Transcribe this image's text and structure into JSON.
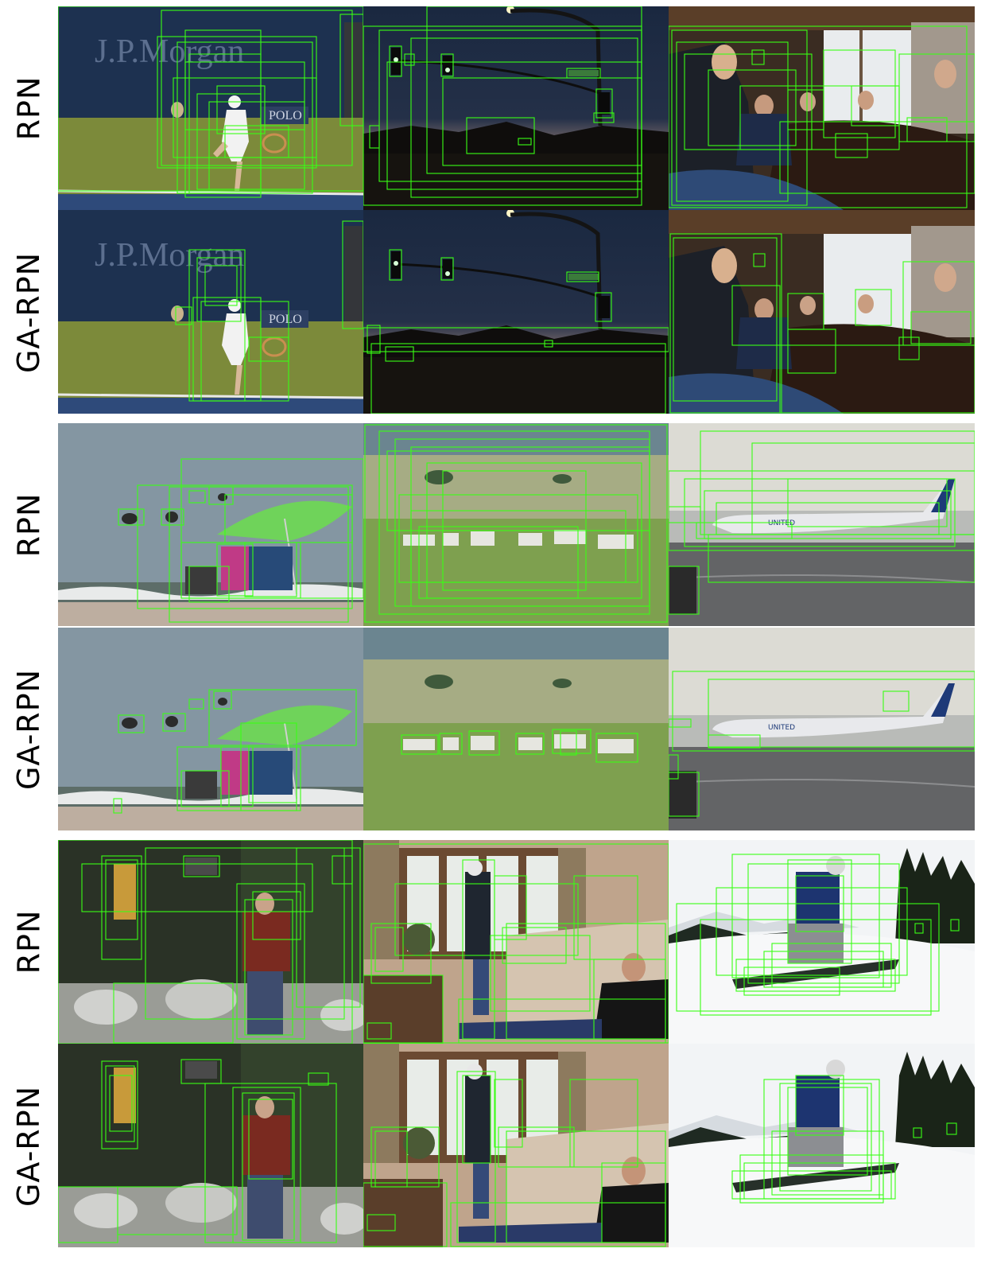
{
  "figure": {
    "rows": [
      {
        "label": "RPN"
      },
      {
        "label": "GA-RPN"
      },
      {
        "label": "RPN"
      },
      {
        "label": "GA-RPN"
      },
      {
        "label": "RPN"
      },
      {
        "label": "GA-RPN"
      }
    ],
    "scenes": [
      {
        "name": "tennis",
        "logo_text": "J.P.Morgan",
        "sign_text": "POLO"
      },
      {
        "name": "traffic-light-dusk"
      },
      {
        "name": "people-dining"
      },
      {
        "name": "beach-umbrella"
      },
      {
        "name": "zebras-savanna"
      },
      {
        "name": "airplane-tarmac",
        "plane_text": "UNITED"
      },
      {
        "name": "hiker-forest"
      },
      {
        "name": "living-room"
      },
      {
        "name": "snowboarder"
      }
    ],
    "box_color": "#39ff14"
  }
}
